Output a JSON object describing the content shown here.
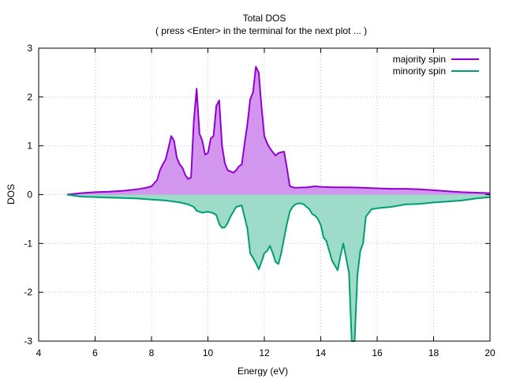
{
  "chart_data": {
    "type": "area",
    "title": "Total DOS",
    "subtitle": "( press <Enter> in the terminal for the next plot ... )",
    "xlabel": "Energy (eV)",
    "ylabel": "DOS",
    "xlim": [
      4,
      20
    ],
    "ylim": [
      -3,
      3
    ],
    "xticks": [
      4,
      6,
      8,
      10,
      12,
      14,
      16,
      18,
      20
    ],
    "yticks": [
      -3,
      -2,
      -1,
      0,
      1,
      2,
      3
    ],
    "grid": true,
    "legend_position": "top-right",
    "series": [
      {
        "name": "majority spin",
        "color": "#9400d3",
        "fill": "#d296ee",
        "x": [
          5.0,
          5.5,
          6.0,
          6.5,
          7.0,
          7.5,
          7.8,
          8.0,
          8.2,
          8.3,
          8.4,
          8.5,
          8.6,
          8.7,
          8.8,
          8.9,
          9.0,
          9.1,
          9.2,
          9.3,
          9.4,
          9.5,
          9.6,
          9.7,
          9.8,
          9.9,
          10.0,
          10.1,
          10.2,
          10.3,
          10.4,
          10.5,
          10.6,
          10.7,
          10.9,
          11.0,
          11.1,
          11.2,
          11.3,
          11.4,
          11.5,
          11.6,
          11.7,
          11.8,
          11.9,
          12.0,
          12.1,
          12.2,
          12.3,
          12.4,
          12.5,
          12.6,
          12.7,
          12.8,
          12.9,
          13.0,
          13.1,
          13.5,
          13.8,
          14.0,
          14.5,
          15.0,
          15.5,
          16.0,
          16.5,
          17.0,
          17.5,
          18.0,
          18.5,
          19.0,
          19.5,
          20.0
        ],
        "y": [
          0.0,
          0.03,
          0.05,
          0.06,
          0.08,
          0.11,
          0.14,
          0.17,
          0.3,
          0.5,
          0.62,
          0.72,
          0.95,
          1.2,
          1.1,
          0.75,
          0.62,
          0.55,
          0.4,
          0.32,
          0.35,
          1.5,
          2.17,
          1.25,
          1.1,
          0.82,
          0.85,
          1.15,
          1.2,
          1.82,
          1.93,
          1.0,
          0.65,
          0.5,
          0.45,
          0.5,
          0.58,
          0.62,
          1.05,
          1.45,
          1.95,
          2.1,
          2.62,
          2.5,
          1.8,
          1.2,
          1.05,
          0.95,
          0.87,
          0.8,
          0.85,
          0.87,
          0.88,
          0.55,
          0.18,
          0.15,
          0.14,
          0.15,
          0.17,
          0.16,
          0.15,
          0.15,
          0.14,
          0.13,
          0.12,
          0.12,
          0.11,
          0.09,
          0.07,
          0.05,
          0.04,
          0.03
        ]
      },
      {
        "name": "minority spin",
        "color": "#009e73",
        "fill": "#9edbc9",
        "x": [
          5.0,
          5.5,
          6.0,
          6.5,
          7.0,
          7.5,
          8.0,
          8.5,
          9.0,
          9.3,
          9.5,
          9.6,
          9.8,
          10.0,
          10.2,
          10.3,
          10.4,
          10.5,
          10.6,
          10.7,
          10.8,
          10.9,
          11.0,
          11.2,
          11.4,
          11.5,
          11.7,
          11.8,
          11.9,
          12.0,
          12.1,
          12.2,
          12.3,
          12.4,
          12.5,
          12.6,
          12.7,
          12.8,
          12.9,
          13.0,
          13.1,
          13.2,
          13.3,
          13.4,
          13.5,
          13.6,
          13.7,
          13.8,
          13.9,
          14.0,
          14.1,
          14.2,
          14.3,
          14.4,
          14.5,
          14.6,
          14.7,
          14.8,
          14.9,
          15.0,
          15.05,
          15.1,
          15.2,
          15.3,
          15.4,
          15.5,
          15.6,
          15.8,
          16.0,
          16.5,
          17.0,
          17.5,
          18.0,
          18.5,
          19.0,
          19.5,
          20.0
        ],
        "y": [
          0.0,
          -0.04,
          -0.05,
          -0.06,
          -0.07,
          -0.08,
          -0.1,
          -0.12,
          -0.16,
          -0.2,
          -0.25,
          -0.33,
          -0.37,
          -0.35,
          -0.38,
          -0.42,
          -0.6,
          -0.68,
          -0.67,
          -0.58,
          -0.45,
          -0.35,
          -0.25,
          -0.22,
          -0.7,
          -1.2,
          -1.4,
          -1.53,
          -1.38,
          -1.2,
          -1.15,
          -1.05,
          -1.2,
          -1.38,
          -1.42,
          -1.2,
          -0.9,
          -0.6,
          -0.35,
          -0.25,
          -0.2,
          -0.18,
          -0.18,
          -0.2,
          -0.25,
          -0.3,
          -0.4,
          -0.43,
          -0.5,
          -0.62,
          -0.88,
          -0.95,
          -1.15,
          -1.35,
          -1.45,
          -1.55,
          -1.25,
          -1.0,
          -1.3,
          -1.6,
          -2.3,
          -3.0,
          -3.0,
          -1.65,
          -1.15,
          -1.0,
          -0.45,
          -0.3,
          -0.28,
          -0.25,
          -0.2,
          -0.19,
          -0.16,
          -0.14,
          -0.12,
          -0.08,
          -0.05
        ]
      }
    ]
  }
}
